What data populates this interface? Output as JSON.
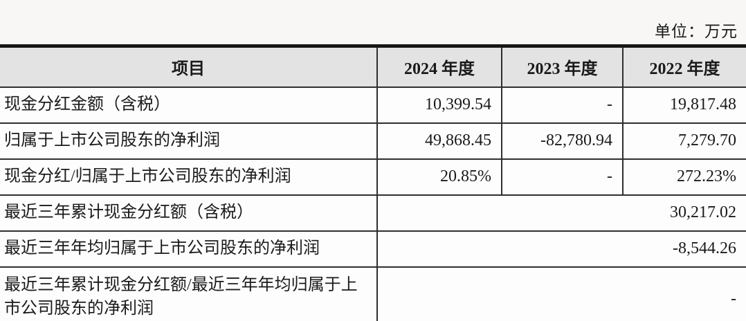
{
  "page": {
    "unit_label": "单位：万元"
  },
  "colors": {
    "header_bg": "#e3e3e3",
    "border": "#2e2e2e",
    "page_bg": "#f8f7f5",
    "cell_bg": "#fdfdfd"
  },
  "table": {
    "columns": [
      "项目",
      "2024 年度",
      "2023 年度",
      "2022 年度"
    ],
    "rows": [
      {
        "label": "现金分红金额（含税）",
        "values": [
          "10,399.54",
          "-",
          "19,817.48"
        ]
      },
      {
        "label": "归属于上市公司股东的净利润",
        "values": [
          "49,868.45",
          "-82,780.94",
          "7,279.70"
        ]
      },
      {
        "label": "现金分红/归属于上市公司股东的净利润",
        "values": [
          "20.85%",
          "-",
          "272.23%"
        ]
      },
      {
        "label": "最近三年累计现金分红额（含税）",
        "merged_value": "30,217.02"
      },
      {
        "label": "最近三年年均归属于上市公司股东的净利润",
        "merged_value": "-8,544.26"
      },
      {
        "label": "最近三年累计现金分红额/最近三年年均归属于上市公司股东的净利润",
        "merged_value": "-"
      }
    ]
  }
}
